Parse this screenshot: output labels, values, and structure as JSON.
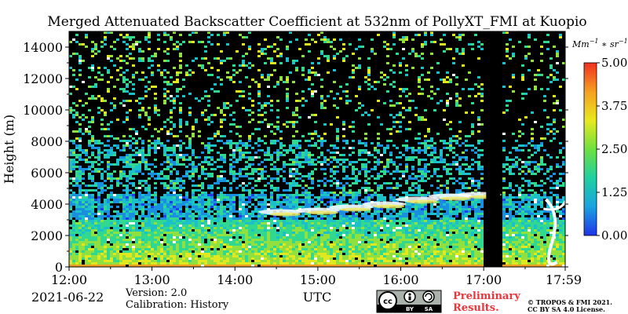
{
  "chart_data": {
    "type": "heatmap",
    "title": "Merged Attenuated Backscatter Coefficient at 532nm of PollyXT_FMI at Kuopio",
    "xlabel": "UTC",
    "ylabel": "Height (m)",
    "x_ticks": [
      "12:00",
      "13:00",
      "14:00",
      "15:00",
      "16:00",
      "17:00",
      "17:59"
    ],
    "x_tick_hours": [
      12.0,
      13.0,
      14.0,
      15.0,
      16.0,
      17.0,
      17.983
    ],
    "xlim_hours": [
      12.0,
      17.983
    ],
    "y_ticks": [
      0,
      2000,
      4000,
      6000,
      8000,
      10000,
      12000,
      14000
    ],
    "ylim": [
      0,
      15000
    ],
    "colorbar": {
      "unit": "Mm^-1 * sr^-1",
      "ticks": [
        "0.00",
        "1.25",
        "2.50",
        "3.75",
        "5.00"
      ],
      "range": [
        0,
        5
      ],
      "colormap": [
        "#1f33e8",
        "#1aa3e0",
        "#1fd0a0",
        "#6fe040",
        "#e8e820",
        "#f5a020",
        "#f03020"
      ]
    },
    "features": {
      "data_gap_hours": [
        17.03,
        17.2
      ],
      "boundary_layer_top_m": 3100,
      "cloud_layer_m": [
        3500,
        4600
      ]
    }
  },
  "footer": {
    "date": "2021-06-22",
    "version": "Version: 2.0",
    "calibration": "Calibration: History",
    "preliminary_line1": "Preliminary",
    "preliminary_line2": "Results.",
    "copyright_line1": "© TROPOS & FMI 2021.",
    "copyright_line2": "CC BY SA 4.0 License.",
    "license_badge": "cc-by-sa-icon",
    "license_badge_text1": "BY",
    "license_badge_text2": "SA"
  }
}
